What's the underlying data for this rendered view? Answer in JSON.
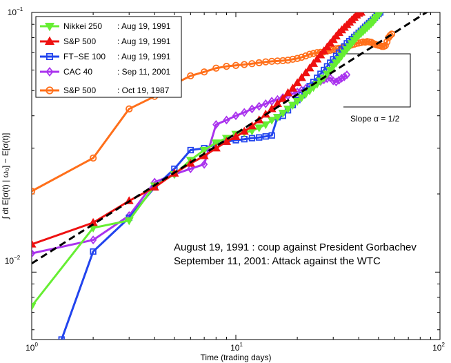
{
  "chart_data": {
    "type": "line",
    "xscale": "log",
    "yscale": "log",
    "xlim": [
      1,
      100
    ],
    "ylim": [
      0.0055,
      0.1
    ],
    "xlabel": "Time (trading days)",
    "ylabel": "∫ dt  E[σ(t) | ω₀] − E[σ(t)]",
    "x_ticks": [
      {
        "value": 1,
        "base": "10",
        "exp": "0"
      },
      {
        "value": 10,
        "base": "10",
        "exp": "1"
      },
      {
        "value": 100,
        "base": "10",
        "exp": "2"
      }
    ],
    "y_ticks": [
      {
        "value": 0.01,
        "base": "10",
        "exp": "−2"
      },
      {
        "value": 0.1,
        "base": "10",
        "exp": "−1"
      }
    ],
    "grid": false,
    "legend_position": "top-left",
    "series": [
      {
        "name": "Nikkei 250",
        "date": ": Aug 19, 1991",
        "color": "#66ee33",
        "marker": "triangle-down",
        "x": [
          1,
          2,
          3,
          4,
          5,
          6,
          7,
          8,
          9,
          10,
          11,
          12,
          13,
          14,
          15,
          16,
          17,
          18,
          19,
          20,
          21,
          22,
          23,
          24,
          25,
          26,
          27,
          28,
          29,
          30,
          31,
          32,
          33,
          34,
          35,
          36,
          37,
          38,
          39,
          40,
          41,
          42,
          43,
          44,
          45,
          46,
          47,
          48,
          49,
          50,
          51
        ],
        "y": [
          0.0074,
          0.0148,
          0.0158,
          0.0215,
          0.0238,
          0.027,
          0.0295,
          0.0315,
          0.0328,
          0.034,
          0.0345,
          0.035,
          0.036,
          0.037,
          0.0385,
          0.0395,
          0.041,
          0.0425,
          0.044,
          0.0455,
          0.047,
          0.0485,
          0.05,
          0.0515,
          0.053,
          0.0545,
          0.056,
          0.058,
          0.06,
          0.062,
          0.064,
          0.066,
          0.068,
          0.07,
          0.072,
          0.074,
          0.076,
          0.078,
          0.08,
          0.0815,
          0.083,
          0.0845,
          0.086,
          0.0875,
          0.089,
          0.0905,
          0.092,
          0.094,
          0.096,
          0.098,
          0.1
        ]
      },
      {
        "name": "S&P 500",
        "date": ": Aug 19, 1991",
        "color": "#ee1111",
        "marker": "triangle-up",
        "x": [
          1,
          2,
          3,
          4,
          5,
          6,
          7,
          8,
          9,
          10,
          11,
          12,
          13,
          14,
          15,
          16,
          17,
          18,
          19,
          20,
          21,
          22,
          23,
          24,
          25,
          26,
          27,
          28,
          29,
          30,
          31,
          32,
          33,
          34,
          35,
          36,
          37,
          38,
          39,
          40,
          41
        ],
        "y": [
          0.0128,
          0.0155,
          0.0188,
          0.0212,
          0.024,
          0.0262,
          0.028,
          0.03,
          0.0318,
          0.0332,
          0.0348,
          0.0365,
          0.0385,
          0.0405,
          0.0425,
          0.0445,
          0.0465,
          0.049,
          0.051,
          0.0535,
          0.056,
          0.0585,
          0.061,
          0.0635,
          0.066,
          0.0685,
          0.071,
          0.0735,
          0.076,
          0.0785,
          0.081,
          0.0835,
          0.0855,
          0.0875,
          0.0895,
          0.0915,
          0.0935,
          0.0955,
          0.0975,
          0.099,
          0.1
        ]
      },
      {
        "name": "FT−SE 100",
        "date": ": Aug 19, 1991",
        "color": "#2244ee",
        "marker": "square",
        "x": [
          1.4,
          2,
          3,
          4,
          5,
          6,
          7,
          8,
          9,
          10,
          11,
          12,
          13,
          14,
          15,
          16,
          17,
          18,
          19,
          20,
          21,
          22,
          23,
          24,
          25,
          26,
          27,
          28,
          29,
          30,
          31,
          32,
          33,
          34,
          35,
          36,
          37,
          38,
          39,
          40,
          41,
          42,
          43,
          44,
          45,
          46,
          47,
          48,
          49,
          50,
          51
        ],
        "y": [
          0.0055,
          0.012,
          0.0162,
          0.0212,
          0.025,
          0.0295,
          0.03,
          0.031,
          0.0318,
          0.0322,
          0.0325,
          0.0328,
          0.033,
          0.0333,
          0.0336,
          0.0395,
          0.04,
          0.042,
          0.044,
          0.046,
          0.048,
          0.05,
          0.052,
          0.054,
          0.056,
          0.058,
          0.06,
          0.062,
          0.064,
          0.066,
          0.068,
          0.07,
          0.072,
          0.074,
          0.076,
          0.0775,
          0.079,
          0.0805,
          0.082,
          0.0835,
          0.085,
          0.0865,
          0.088,
          0.0895,
          0.091,
          0.0925,
          0.094,
          0.0955,
          0.097,
          0.0985,
          0.1
        ]
      },
      {
        "name": "CAC 40",
        "date": ": Sep 11, 2001",
        "color": "#aa33ee",
        "marker": "diamond",
        "x": [
          1,
          2,
          3,
          4,
          5,
          6,
          7,
          8,
          9,
          10,
          11,
          12,
          13,
          14,
          15,
          16,
          17,
          18,
          19,
          20,
          21,
          22,
          23,
          24,
          25,
          26,
          27,
          28,
          29,
          30,
          31,
          32,
          33,
          34,
          35
        ],
        "y": [
          0.0118,
          0.0133,
          0.0165,
          0.0222,
          0.0238,
          0.025,
          0.026,
          0.037,
          0.0385,
          0.04,
          0.0412,
          0.0425,
          0.0435,
          0.0445,
          0.0455,
          0.0462,
          0.047,
          0.0478,
          0.0486,
          0.0494,
          0.0502,
          0.051,
          0.0518,
          0.0526,
          0.0534,
          0.0542,
          0.055,
          0.0556,
          0.056,
          0.0545,
          0.054,
          0.0548,
          0.0558,
          0.0565,
          0.0575
        ]
      },
      {
        "name": "S&P 500",
        "date": ": Oct 19, 1987",
        "color": "#ff6f1a",
        "marker": "circle",
        "x": [
          1,
          2,
          3,
          4,
          5,
          6,
          7,
          8,
          9,
          10,
          11,
          12,
          13,
          14,
          15,
          16,
          17,
          18,
          19,
          20,
          21,
          22,
          23,
          24,
          25,
          26,
          27,
          28,
          29,
          30,
          31,
          32,
          33,
          34,
          35,
          36,
          37,
          38,
          39,
          40,
          41,
          42,
          43,
          44,
          45,
          46,
          47,
          48,
          49,
          50,
          51,
          52,
          53,
          54,
          55,
          56,
          57,
          58
        ],
        "y": [
          0.0205,
          0.0275,
          0.0425,
          0.0475,
          0.053,
          0.057,
          0.059,
          0.061,
          0.062,
          0.0625,
          0.063,
          0.0635,
          0.064,
          0.0645,
          0.0648,
          0.065,
          0.0652,
          0.0655,
          0.066,
          0.0665,
          0.0672,
          0.068,
          0.069,
          0.0695,
          0.07,
          0.0702,
          0.0705,
          0.071,
          0.0715,
          0.072,
          0.0725,
          0.0728,
          0.073,
          0.0735,
          0.074,
          0.0745,
          0.075,
          0.0755,
          0.076,
          0.0762,
          0.0765,
          0.077,
          0.0768,
          0.0772,
          0.077,
          0.0768,
          0.076,
          0.0755,
          0.075,
          0.0748,
          0.0745,
          0.074,
          0.074,
          0.0745,
          0.077,
          0.08,
          0.0815,
          0.0825
        ]
      }
    ],
    "fit_line": {
      "name": "Slope α = 1/2",
      "slope": 0.5,
      "x": [
        1,
        100
      ],
      "y": [
        0.0108,
        0.108
      ]
    },
    "slope_label": "Slope α = 1/2",
    "annotations": [
      "August 19, 1991 : coup against President Gorbachev",
      "September 11, 2001: Attack against the WTC"
    ]
  }
}
